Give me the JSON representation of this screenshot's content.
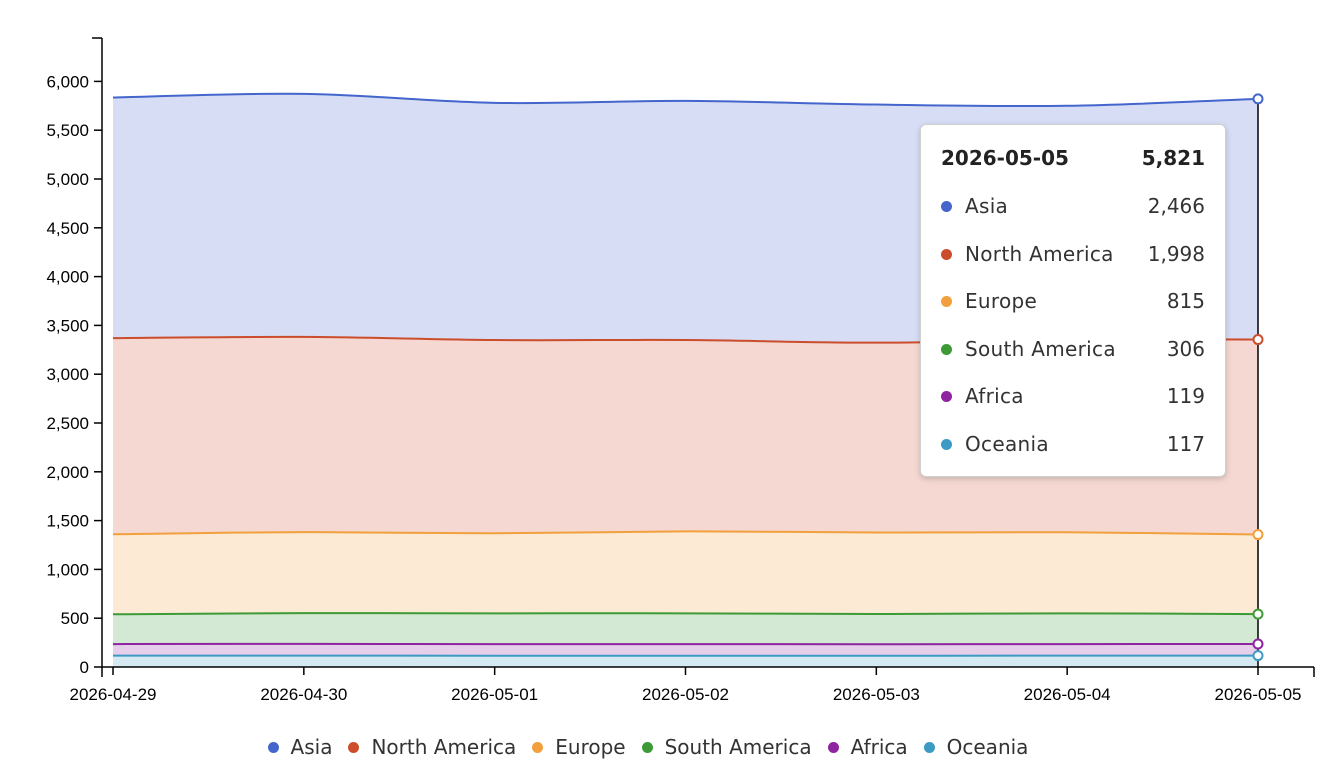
{
  "chart_data": {
    "type": "area",
    "stacked": true,
    "x": [
      "2026-04-29",
      "2026-04-30",
      "2026-05-01",
      "2026-05-02",
      "2026-05-03",
      "2026-05-04",
      "2026-05-05"
    ],
    "series": [
      {
        "name": "Asia",
        "color": "#4466cc",
        "values": [
          2465,
          2490,
          2430,
          2450,
          2440,
          2395,
          2466
        ]
      },
      {
        "name": "North America",
        "color": "#cc4d2c",
        "values": [
          2010,
          2000,
          1980,
          1960,
          1945,
          1975,
          1998
        ]
      },
      {
        "name": "Europe",
        "color": "#f2a03d",
        "values": [
          820,
          830,
          820,
          840,
          835,
          830,
          815
        ]
      },
      {
        "name": "South America",
        "color": "#3d9a36",
        "values": [
          305,
          315,
          315,
          315,
          310,
          315,
          306
        ]
      },
      {
        "name": "Africa",
        "color": "#8e24a0",
        "values": [
          118,
          120,
          120,
          120,
          118,
          118,
          119
        ]
      },
      {
        "name": "Oceania",
        "color": "#3c9ac4",
        "values": [
          117,
          117,
          115,
          115,
          115,
          117,
          117
        ]
      }
    ],
    "ylim": [
      0,
      6500
    ],
    "yticks": [
      0,
      500,
      1000,
      1500,
      2000,
      2500,
      3000,
      3500,
      4000,
      4500,
      5000,
      5500,
      6000
    ],
    "ytick_labels": [
      "0",
      "500",
      "1,000",
      "1,500",
      "2,000",
      "2,500",
      "3,000",
      "3,500",
      "4,000",
      "4,500",
      "5,000",
      "5,500",
      "6,000"
    ],
    "grid": false,
    "legend_position": "bottom",
    "title": "",
    "xlabel": "",
    "ylabel": ""
  },
  "tooltip": {
    "date": "2026-05-05",
    "total": "5,821",
    "rows": [
      {
        "label": "Asia",
        "value": "2,466",
        "color": "#4466cc"
      },
      {
        "label": "North America",
        "value": "1,998",
        "color": "#cc4d2c"
      },
      {
        "label": "Europe",
        "value": "815",
        "color": "#f2a03d"
      },
      {
        "label": "South America",
        "value": "306",
        "color": "#3d9a36"
      },
      {
        "label": "Africa",
        "value": "119",
        "color": "#8e24a0"
      },
      {
        "label": "Oceania",
        "value": "117",
        "color": "#3c9ac4"
      }
    ]
  },
  "legend": [
    {
      "label": "Asia",
      "color": "#4466cc"
    },
    {
      "label": "North America",
      "color": "#cc4d2c"
    },
    {
      "label": "Europe",
      "color": "#f2a03d"
    },
    {
      "label": "South America",
      "color": "#3d9a36"
    },
    {
      "label": "Africa",
      "color": "#8e24a0"
    },
    {
      "label": "Oceania",
      "color": "#3c9ac4"
    }
  ]
}
